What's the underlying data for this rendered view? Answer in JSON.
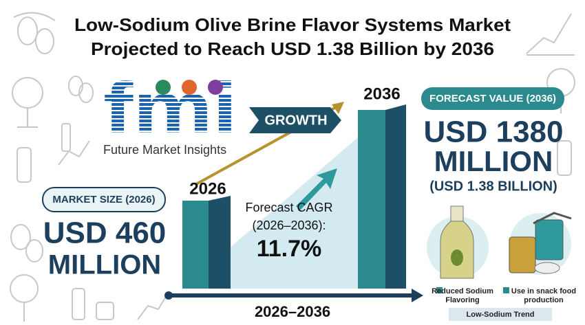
{
  "header": {
    "title_line1": "Low-Sodium Olive Brine Flavor Systems Market",
    "title_line2": "Projected to Reach USD 1.38 Billion by 2036"
  },
  "logo": {
    "letters": "fmi",
    "name": "Future Market Insights"
  },
  "growth_label": "GROWTH",
  "market_size": {
    "label": "MARKET SIZE (2026)",
    "value_line1": "USD 460",
    "value_line2": "MILLION",
    "year": "2026"
  },
  "forecast": {
    "label": "FORECAST VALUE (2036)",
    "value_line1": "USD 1380",
    "value_line2": "MILLION",
    "value_sub": "(USD 1.38 BILLION)",
    "year": "2036"
  },
  "cagr": {
    "label_line1": "Forecast CAGR",
    "label_line2": "(2026–2036):",
    "value": "11.7%"
  },
  "period": "2026–2036",
  "legend": [
    {
      "label": "Reduced Sodium Flavoring"
    },
    {
      "label": "Use in snack food production"
    },
    {
      "label": "Low-Sodium Trend"
    }
  ]
}
